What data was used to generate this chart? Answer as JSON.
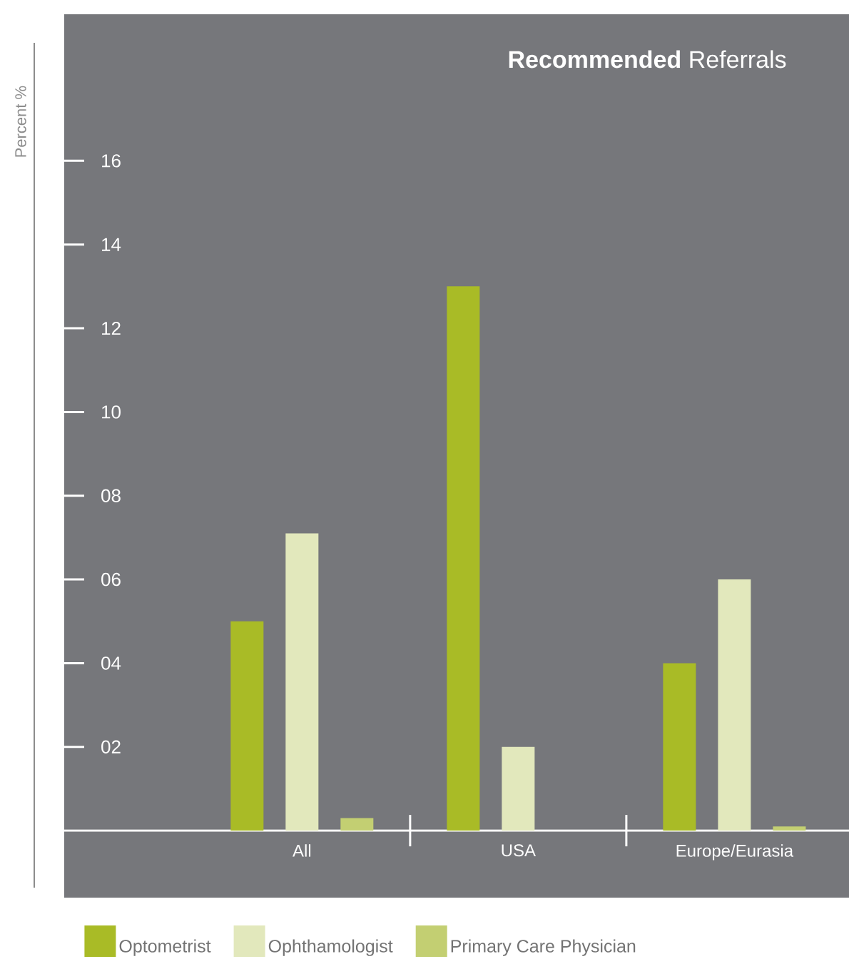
{
  "chart_data": {
    "type": "bar",
    "title": "**Recommended** Referrals",
    "ylabel": "Percent %",
    "categories": [
      "All",
      "USA",
      "Europe/Eurasia"
    ],
    "series": [
      {
        "name": "Optometrist",
        "color": "#a9bb26",
        "values": [
          5.0,
          13.0,
          4.0
        ]
      },
      {
        "name": "Ophthamologist",
        "color": "#e2e8bc",
        "values": [
          7.1,
          2.0,
          6.0
        ]
      },
      {
        "name": "Primary Care Physician",
        "color": "#c3cf72",
        "values": [
          0.3,
          0,
          0.1
        ]
      }
    ],
    "ylim": [
      -1.6,
      19.5
    ],
    "yticks": [
      {
        "value": 2,
        "label": "02"
      },
      {
        "value": 4,
        "label": "04"
      },
      {
        "value": 6,
        "label": "06"
      },
      {
        "value": 8,
        "label": "08"
      },
      10,
      12,
      14,
      16
    ],
    "legend": "bottom"
  }
}
